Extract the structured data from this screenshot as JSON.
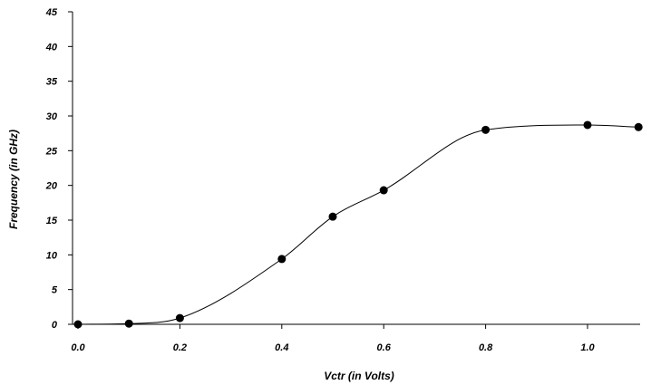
{
  "chart_data": {
    "type": "line",
    "title": "",
    "xlabel": "Vctr (in Volts)",
    "ylabel": "Frequency  (in GHz)",
    "xlim": [
      0.0,
      1.1
    ],
    "ylim": [
      0,
      45
    ],
    "x_ticks": [
      "0.0",
      "0.2",
      "0.4",
      "0.6",
      "0.8",
      "1.0"
    ],
    "y_ticks": [
      "0",
      "5",
      "10",
      "15",
      "20",
      "25",
      "30",
      "35",
      "40",
      "45"
    ],
    "grid": false,
    "marker": "filled-circle",
    "smooth": true,
    "series": [
      {
        "color": "#000000",
        "x": [
          0.0,
          0.1,
          0.2,
          0.4,
          0.5,
          0.6,
          0.8,
          1.0,
          1.1
        ],
        "y": [
          0.0,
          0.1,
          0.9,
          9.4,
          15.5,
          19.3,
          28.0,
          28.7,
          28.4
        ]
      }
    ]
  }
}
